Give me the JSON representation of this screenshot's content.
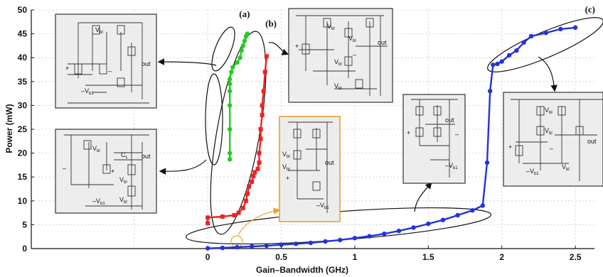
{
  "chart_data": {
    "type": "line",
    "xlabel": "Gain–Bandwidth (GHz)",
    "ylabel": "Power (mW)",
    "xlim": [
      -1.2,
      2.63
    ],
    "ylim": [
      0,
      50
    ],
    "x_ticks": [
      {
        "v": 0,
        "label": "0"
      },
      {
        "v": 0.5,
        "label": "0.5"
      },
      {
        "v": 1,
        "label": "1"
      },
      {
        "v": 1.5,
        "label": "1.5"
      },
      {
        "v": 2,
        "label": "2"
      },
      {
        "v": 2.5,
        "label": "2.5"
      }
    ],
    "y_ticks": [
      {
        "v": 0,
        "label": "0"
      },
      {
        "v": 5,
        "label": "5"
      },
      {
        "v": 10,
        "label": "10"
      },
      {
        "v": 15,
        "label": "15"
      },
      {
        "v": 20,
        "label": "20"
      },
      {
        "v": 25,
        "label": "25"
      },
      {
        "v": 30,
        "label": "30"
      },
      {
        "v": 35,
        "label": "35"
      },
      {
        "v": 40,
        "label": "40"
      },
      {
        "v": 45,
        "label": "45"
      },
      {
        "v": 50,
        "label": "50"
      }
    ],
    "grid": true,
    "series": [
      {
        "id": "a",
        "color": "#22cc22",
        "marker": "circle",
        "points": [
          [
            0.15,
            18.7
          ],
          [
            0.15,
            20
          ],
          [
            0.15,
            25
          ],
          [
            0.15,
            30
          ],
          [
            0.15,
            33
          ],
          [
            0.15,
            34.5
          ],
          [
            0.15,
            35.5
          ],
          [
            0.16,
            37
          ],
          [
            0.17,
            38
          ],
          [
            0.2,
            39
          ],
          [
            0.22,
            40
          ],
          [
            0.23,
            41.5
          ],
          [
            0.24,
            42.5
          ],
          [
            0.25,
            43.5
          ],
          [
            0.26,
            44.5
          ],
          [
            0.27,
            45
          ]
        ]
      },
      {
        "id": "b",
        "color": "#ee2222",
        "marker": "square",
        "points": [
          [
            0.0,
            5.3
          ],
          [
            0.0,
            6.5
          ],
          [
            0.1,
            6.7
          ],
          [
            0.18,
            7
          ],
          [
            0.21,
            7.5
          ],
          [
            0.24,
            8.5
          ],
          [
            0.26,
            10
          ],
          [
            0.27,
            11.5
          ],
          [
            0.28,
            13
          ],
          [
            0.3,
            14
          ],
          [
            0.31,
            15.2
          ],
          [
            0.32,
            16
          ],
          [
            0.34,
            16.7
          ],
          [
            0.35,
            18
          ],
          [
            0.35,
            20
          ],
          [
            0.36,
            23
          ],
          [
            0.36,
            25
          ],
          [
            0.37,
            28
          ],
          [
            0.37,
            30
          ],
          [
            0.38,
            33
          ],
          [
            0.39,
            37
          ],
          [
            0.4,
            40.3
          ]
        ]
      },
      {
        "id": "c",
        "color": "#2233dd",
        "marker": "circle",
        "points": [
          [
            0.0,
            0.05
          ],
          [
            0.1,
            0.15
          ],
          [
            0.2,
            0.3
          ],
          [
            0.3,
            0.45
          ],
          [
            0.4,
            0.6
          ],
          [
            0.5,
            0.8
          ],
          [
            0.6,
            1.0
          ],
          [
            0.7,
            1.2
          ],
          [
            0.8,
            1.5
          ],
          [
            0.9,
            1.8
          ],
          [
            1.0,
            2.2
          ],
          [
            1.1,
            2.6
          ],
          [
            1.2,
            3.1
          ],
          [
            1.3,
            3.7
          ],
          [
            1.4,
            4.4
          ],
          [
            1.5,
            5.2
          ],
          [
            1.6,
            6.0
          ],
          [
            1.7,
            7.0
          ],
          [
            1.8,
            8.0
          ],
          [
            1.87,
            9.0
          ],
          [
            1.9,
            18
          ],
          [
            1.92,
            33
          ],
          [
            1.94,
            38.5
          ],
          [
            1.97,
            38.7
          ],
          [
            2.0,
            39.2
          ],
          [
            2.05,
            40.5
          ],
          [
            2.1,
            41.5
          ],
          [
            2.15,
            43.2
          ],
          [
            2.2,
            44.5
          ],
          [
            2.3,
            45.2
          ],
          [
            2.4,
            46
          ],
          [
            2.5,
            46.3
          ]
        ]
      }
    ],
    "annotations": [
      {
        "label": "(a)",
        "x": 0.25,
        "y": 48.5
      },
      {
        "label": "(b)",
        "x": 0.43,
        "y": 46.5
      },
      {
        "label": "(c)",
        "x": 2.6,
        "y": 49.5
      }
    ]
  },
  "schematics": {
    "box1": {
      "labels": [
        "V",
        "bl",
        "+",
        "–",
        "out",
        "–V",
        "b1"
      ]
    },
    "box2": {
      "labels": [
        "V",
        "bl",
        "C",
        "L",
        "out",
        "+",
        "–",
        "–V",
        "b1",
        "V",
        "bl",
        "V",
        "bl"
      ]
    },
    "box3": {
      "labels": [
        "V",
        "bl",
        "V",
        "bl",
        "out",
        "+",
        "–",
        "V",
        "bl",
        "V",
        "bl"
      ]
    },
    "box4": {
      "labels": [
        "V",
        "bl",
        "V",
        "bl",
        "out",
        "+",
        "–V",
        "b1"
      ]
    },
    "box5": {
      "labels": [
        "out",
        "+",
        "–",
        "–V",
        "b1"
      ]
    },
    "box6": {
      "labels": [
        "V",
        "bl",
        "V",
        "bl",
        "out",
        "+",
        "–",
        "–V",
        "b1",
        "V",
        "bl"
      ]
    }
  }
}
